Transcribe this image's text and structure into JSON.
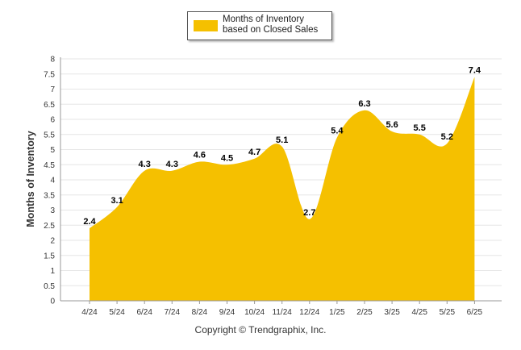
{
  "chart_data": {
    "type": "area",
    "categories": [
      "4/24",
      "5/24",
      "6/24",
      "7/24",
      "8/24",
      "9/24",
      "10/24",
      "11/24",
      "12/24",
      "1/25",
      "2/25",
      "3/25",
      "4/25",
      "5/25",
      "6/25"
    ],
    "series": [
      {
        "name": "Months of Inventory based on Closed Sales",
        "values": [
          2.4,
          3.1,
          4.3,
          4.3,
          4.6,
          4.5,
          4.7,
          5.1,
          2.7,
          5.4,
          6.3,
          5.6,
          5.5,
          5.2,
          7.4
        ]
      }
    ],
    "data_labels": [
      "2.4",
      "3.1",
      "4.3",
      "4.3",
      "4.6",
      "4.5",
      "4.7",
      "5.1",
      "2.7",
      "5.4",
      "6.3",
      "5.6",
      "5.5",
      "5.2",
      "7.4"
    ],
    "yticks": [
      "0",
      "0.5",
      "1",
      "1.5",
      "2",
      "2.5",
      "3",
      "3.5",
      "4",
      "4.5",
      "5",
      "5.5",
      "6",
      "6.5",
      "7",
      "7.5",
      "8"
    ],
    "ylim": [
      0,
      8
    ],
    "ylabel": "Months of Inventory",
    "xlabel": "",
    "grid": true,
    "legend_position": "top",
    "color": "#f5c000"
  },
  "legend": {
    "label": "Months of Inventory based on Closed Sales"
  },
  "footer": {
    "copyright": "Copyright © Trendgraphix, Inc."
  }
}
